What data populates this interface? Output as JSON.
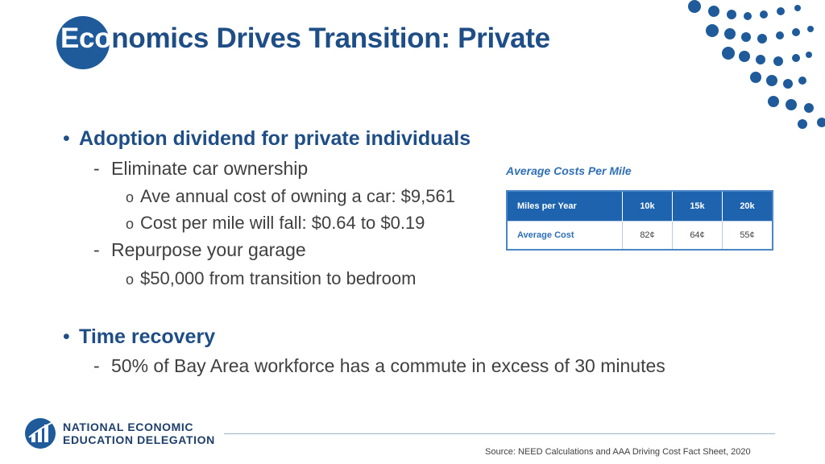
{
  "slide": {
    "title_prefix": "Eco",
    "title_rest": "nomics Drives Transition: Private"
  },
  "bullets": {
    "b1": {
      "heading": "Adoption dividend for private individuals",
      "sub1": "Eliminate car ownership",
      "sub1_items": [
        "Ave annual cost of owning a car:  $9,561",
        "Cost per mile will fall:  $0.64 to $0.19"
      ],
      "sub2": "Repurpose your garage",
      "sub2_items": [
        "$50,000 from transition to bedroom"
      ]
    },
    "b2": {
      "heading": "Time recovery",
      "sub1": "50% of Bay Area workforce has a commute in excess of 30 minutes"
    },
    "bullet_symbol": "•",
    "dash_symbol": "-",
    "sub_symbol": "o"
  },
  "cost_table": {
    "title": "Average Costs Per Mile",
    "headers": [
      "Miles per Year",
      "10k",
      "15k",
      "20k"
    ],
    "row": [
      "Average Cost",
      "82¢",
      "64¢",
      "55¢"
    ]
  },
  "footer": {
    "logo_line1": "NATIONAL ECONOMIC",
    "logo_line2": "EDUCATION DELEGATION",
    "source": "Source: NEED Calculations and AAA Driving Cost Fact Sheet, 2020"
  },
  "colors": {
    "title_blue": "#1f4e86",
    "accent_blue": "#1e63ad",
    "dot_blue": "#1f5a9a"
  }
}
